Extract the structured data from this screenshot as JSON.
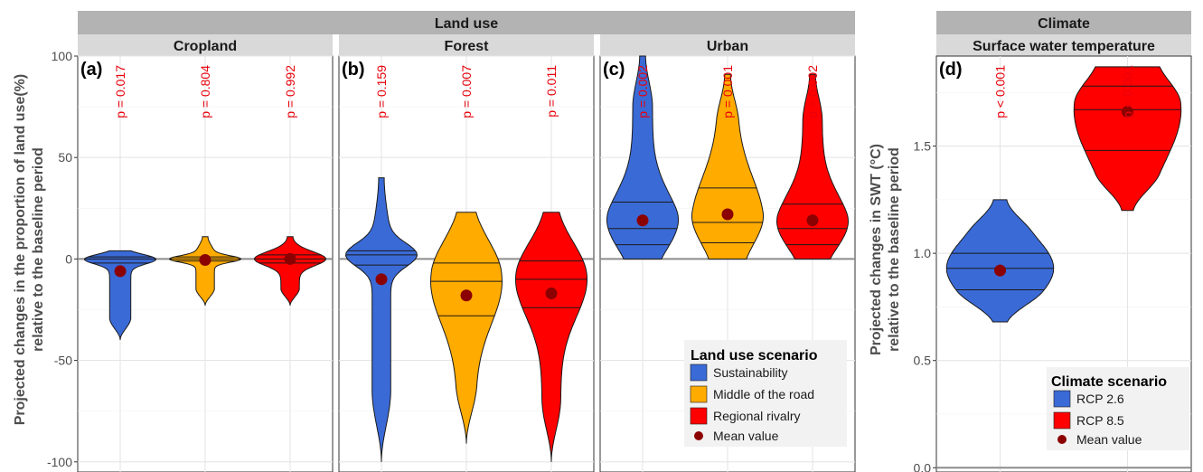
{
  "figure": {
    "strips": {
      "land_use": "Land use",
      "climate": "Climate",
      "cropland": "Cropland",
      "forest": "Forest",
      "urban": "Urban",
      "swt": "Surface water temperature"
    },
    "ylabel_left": [
      "Projected changes in the proportion of land use(%)",
      "relative to the baseline period"
    ],
    "ylabel_right": [
      "Projected changes in SWT (°C)",
      "relative to the baseline period"
    ],
    "legend_land": {
      "title": "Land use scenario",
      "items": [
        "Sustainability",
        "Middle of the road",
        "Regional rivalry"
      ],
      "mean_label": "Mean value"
    },
    "legend_climate": {
      "title": "Climate scenario",
      "items": [
        "RCP 2.6",
        "RCP 8.5"
      ],
      "mean_label": "Mean value"
    }
  },
  "colors": {
    "sustainability": "#3a6ad6",
    "middle": "#ffab00",
    "rivalry": "#ff0000",
    "rcp26": "#3a6ad6",
    "rcp85": "#ff0000",
    "mean": "#8b0000",
    "strip_top": "#b3b3b3",
    "strip_sub": "#d9d9d9"
  },
  "chart_data": [
    {
      "type": "violin",
      "panel": "(a)",
      "facet": "Cropland",
      "ylim": [
        -105,
        100
      ],
      "yticks": [
        -100,
        -50,
        0,
        50,
        100
      ],
      "groups": [
        {
          "scenario": "Sustainability",
          "p_label": "p = 0.017",
          "mean": -6,
          "min": -40,
          "max": 4,
          "quantiles": [
            -2,
            0,
            1
          ]
        },
        {
          "scenario": "Middle of the road",
          "p_label": "p = 0.804",
          "mean": -0.5,
          "min": -23,
          "max": 11,
          "quantiles": [
            -1,
            0,
            1
          ]
        },
        {
          "scenario": "Regional rivalry",
          "p_label": "p = 0.992",
          "mean": 0,
          "min": -23,
          "max": 11,
          "quantiles": [
            -2,
            0,
            2
          ]
        }
      ]
    },
    {
      "type": "violin",
      "panel": "(b)",
      "facet": "Forest",
      "ylim": [
        -105,
        100
      ],
      "groups": [
        {
          "scenario": "Sustainability",
          "p_label": "p = 0.159",
          "mean": -10,
          "min": -100,
          "max": 40,
          "quantiles": [
            -3,
            2,
            4
          ]
        },
        {
          "scenario": "Middle of the road",
          "p_label": "p = 0.007",
          "mean": -18,
          "min": -91,
          "max": 23,
          "quantiles": [
            -28,
            -11,
            -2
          ]
        },
        {
          "scenario": "Regional rivalry",
          "p_label": "p = 0.011",
          "mean": -17,
          "min": -100,
          "max": 23,
          "quantiles": [
            -24,
            -10,
            -1
          ]
        }
      ]
    },
    {
      "type": "violin",
      "panel": "(c)",
      "facet": "Urban",
      "ylim": [
        -105,
        100
      ],
      "groups": [
        {
          "scenario": "Sustainability",
          "p_label": "p = 0.002",
          "mean": 19,
          "min": 0,
          "max": 100,
          "quantiles": [
            7,
            15,
            28
          ]
        },
        {
          "scenario": "Middle of the road",
          "p_label": "p = 0.001",
          "mean": 22,
          "min": 0,
          "max": 91,
          "quantiles": [
            8,
            18,
            35
          ]
        },
        {
          "scenario": "Regional rivalry",
          "p_label": "p = 0.002",
          "mean": 19,
          "min": 0,
          "max": 91,
          "quantiles": [
            7,
            15,
            27
          ]
        }
      ]
    },
    {
      "type": "violin",
      "panel": "(d)",
      "facet": "Surface water temperature",
      "ylim": [
        -0.02,
        1.92
      ],
      "yticks": [
        0.0,
        0.5,
        1.0,
        1.5
      ],
      "ytick_labels": [
        "0.0",
        "0.5",
        "1.0",
        "1.5"
      ],
      "groups": [
        {
          "scenario": "RCP 2.6",
          "p_label": "p < 0.001",
          "mean": 0.92,
          "min": 0.68,
          "max": 1.25,
          "quantiles": [
            0.83,
            0.93,
            1.0
          ]
        },
        {
          "scenario": "RCP 8.5",
          "p_label": "p < 0.001",
          "mean": 1.66,
          "min": 1.2,
          "max": 1.87,
          "quantiles": [
            1.48,
            1.67,
            1.78
          ]
        }
      ]
    }
  ]
}
